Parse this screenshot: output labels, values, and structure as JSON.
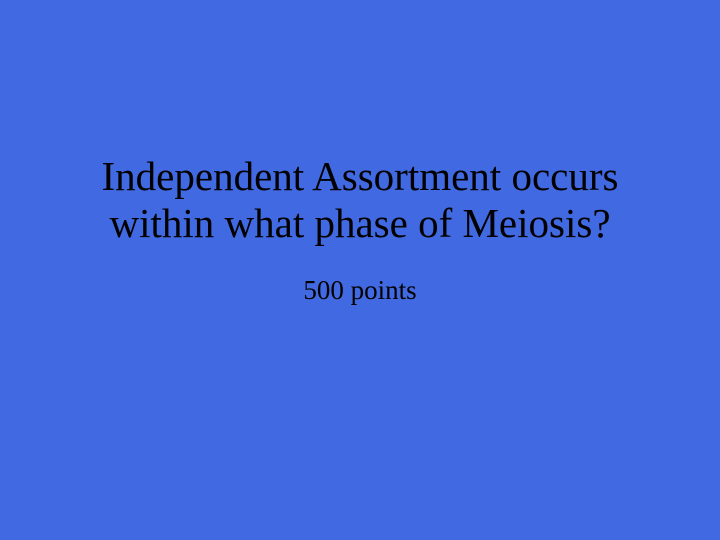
{
  "slide": {
    "question_line1": "Independent Assortment occurs",
    "question_line2": "within what phase of Meiosis?",
    "points": "500 points",
    "background_color": "#4169e1",
    "text_color": "#000000",
    "title_fontsize": 41,
    "points_fontsize": 27,
    "font_family": "Times New Roman"
  }
}
